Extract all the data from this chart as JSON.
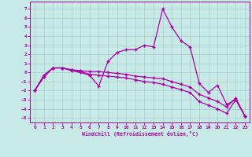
{
  "xlabel": "Windchill (Refroidissement éolien,°C)",
  "xlim": [
    -0.5,
    23.5
  ],
  "ylim": [
    -5.5,
    7.8
  ],
  "yticks": [
    -5,
    -4,
    -3,
    -2,
    -1,
    0,
    1,
    2,
    3,
    4,
    5,
    6,
    7
  ],
  "xticks": [
    0,
    1,
    2,
    3,
    4,
    5,
    6,
    7,
    8,
    9,
    10,
    11,
    12,
    13,
    14,
    15,
    16,
    17,
    18,
    19,
    20,
    21,
    22,
    23
  ],
  "background_color": "#c8eae6",
  "grid_color": "#a8cccc",
  "line_color": "#aa00aa",
  "line1_x": [
    0,
    1,
    2,
    3,
    4,
    5,
    6,
    7,
    8,
    9,
    10,
    11,
    12,
    13,
    14,
    15,
    16,
    17,
    18,
    19,
    20,
    21,
    22,
    23
  ],
  "line1_y": [
    -2.0,
    -0.5,
    0.5,
    0.5,
    0.2,
    0.0,
    -0.3,
    -1.5,
    1.2,
    2.2,
    2.5,
    2.5,
    3.0,
    2.8,
    7.0,
    5.0,
    3.5,
    2.8,
    -1.2,
    -2.2,
    -1.4,
    -3.5,
    -3.0,
    -4.8
  ],
  "line2_x": [
    0,
    1,
    2,
    3,
    4,
    5,
    6,
    7,
    8,
    9,
    10,
    11,
    12,
    13,
    14,
    15,
    16,
    17,
    18,
    19,
    20,
    21,
    22,
    23
  ],
  "line2_y": [
    -2.0,
    -0.3,
    0.5,
    0.5,
    0.3,
    0.2,
    0.1,
    0.1,
    0.0,
    -0.1,
    -0.2,
    -0.4,
    -0.5,
    -0.6,
    -0.7,
    -1.0,
    -1.3,
    -1.6,
    -2.4,
    -2.8,
    -3.2,
    -3.8,
    -2.8,
    -4.8
  ],
  "line3_x": [
    0,
    1,
    2,
    3,
    4,
    5,
    6,
    7,
    8,
    9,
    10,
    11,
    12,
    13,
    14,
    15,
    16,
    17,
    18,
    19,
    20,
    21,
    22,
    23
  ],
  "line3_y": [
    -2.0,
    -0.3,
    0.5,
    0.5,
    0.3,
    0.1,
    -0.2,
    -0.3,
    -0.4,
    -0.5,
    -0.6,
    -0.8,
    -1.0,
    -1.1,
    -1.3,
    -1.6,
    -1.9,
    -2.2,
    -3.2,
    -3.6,
    -4.0,
    -4.5,
    -3.0,
    -4.8
  ]
}
